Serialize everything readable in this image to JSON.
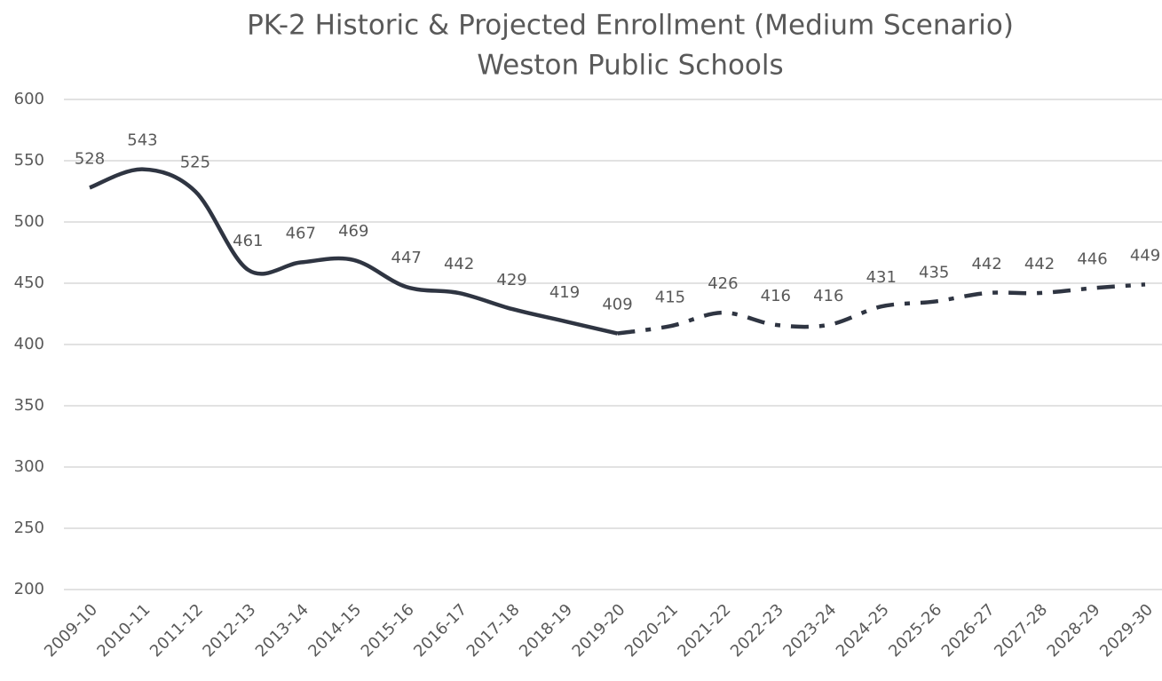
{
  "chart_data": {
    "type": "line",
    "title": "PK-2 Historic & Projected Enrollment (Medium Scenario)",
    "subtitle": "Weston Public Schools",
    "categories": [
      "2009-10",
      "2010-11",
      "2011-12",
      "2012-13",
      "2013-14",
      "2014-15",
      "2015-16",
      "2016-17",
      "2017-18",
      "2018-19",
      "2019-20",
      "2020-21",
      "2021-22",
      "2022-23",
      "2023-24",
      "2024-25",
      "2025-26",
      "2026-27",
      "2027-28",
      "2028-29",
      "2029-30"
    ],
    "series": [
      {
        "color": "#2f3542",
        "line_style": "solid",
        "values": [
          528,
          543,
          525,
          461,
          467,
          469,
          447,
          442,
          429,
          419,
          409,
          null,
          null,
          null,
          null,
          null,
          null,
          null,
          null,
          null,
          null
        ]
      },
      {
        "color": "#2f3542",
        "line_style": "dash-dot",
        "values": [
          null,
          null,
          null,
          null,
          null,
          null,
          null,
          null,
          null,
          null,
          409,
          415,
          426,
          416,
          416,
          431,
          435,
          442,
          442,
          446,
          449
        ]
      }
    ],
    "ylim": [
      200,
      600
    ],
    "yticks": [
      200,
      250,
      300,
      350,
      400,
      450,
      500,
      550,
      600
    ],
    "grid": true
  }
}
